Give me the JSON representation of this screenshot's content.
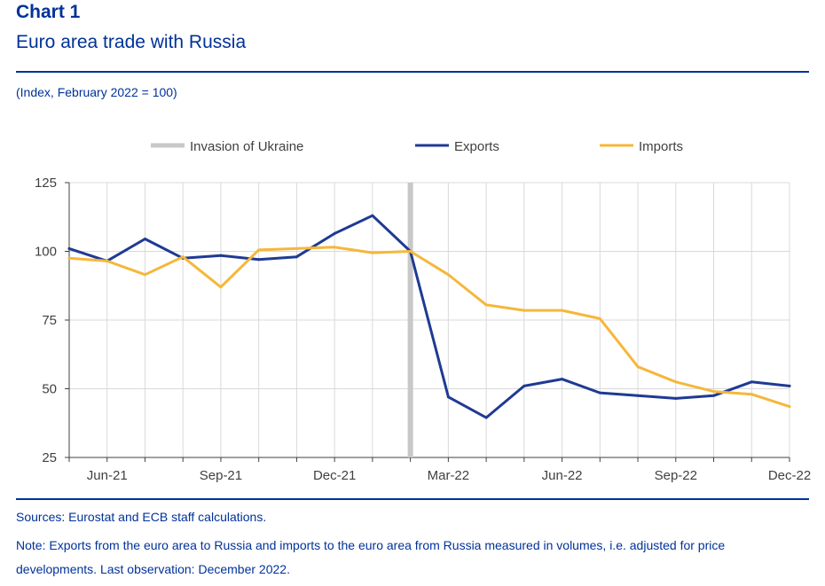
{
  "header": {
    "label": "Chart 1",
    "title": "Euro area trade with Russia"
  },
  "subtitle": "(Index, February 2022 = 100)",
  "footer": {
    "source": "Sources: Eurostat and ECB staff calculations.",
    "note": "Note: Exports from the euro area to Russia and imports to the euro area from Russia measured in volumes, i.e. adjusted for price developments. Last observation: December 2022."
  },
  "colors": {
    "brand": "#003299",
    "exports": "#1f3a93",
    "imports": "#f5b73b",
    "invasion": "#c8c8c8",
    "grid": "#d9d9d9"
  },
  "chart_data": {
    "type": "line",
    "title": "Euro area trade with Russia",
    "ylabel": "Index, February 2022 = 100",
    "xlabel": "",
    "ylim": [
      25,
      125
    ],
    "yticks": [
      25,
      50,
      75,
      100,
      125
    ],
    "grid": true,
    "legend_position": "top",
    "x": [
      "May-21",
      "Jun-21",
      "Jul-21",
      "Aug-21",
      "Sep-21",
      "Oct-21",
      "Nov-21",
      "Dec-21",
      "Jan-22",
      "Feb-22",
      "Mar-22",
      "Apr-22",
      "May-22",
      "Jun-22",
      "Jul-22",
      "Aug-22",
      "Sep-22",
      "Oct-22",
      "Nov-22",
      "Dec-22"
    ],
    "x_tick_labels": [
      {
        "index": 1,
        "label": "Jun-21"
      },
      {
        "index": 4,
        "label": "Sep-21"
      },
      {
        "index": 7,
        "label": "Dec-21"
      },
      {
        "index": 10,
        "label": "Mar-22"
      },
      {
        "index": 13,
        "label": "Jun-22"
      },
      {
        "index": 16,
        "label": "Sep-22"
      },
      {
        "index": 19,
        "label": "Dec-22"
      }
    ],
    "series": [
      {
        "name": "Exports",
        "color": "#1f3a93",
        "values": [
          101,
          96.5,
          104.5,
          97.5,
          98.5,
          97,
          98,
          106.5,
          113,
          100,
          47,
          39.5,
          51,
          53.5,
          48.5,
          47.5,
          46.5,
          47.5,
          52.5,
          51
        ]
      },
      {
        "name": "Imports",
        "color": "#f5b73b",
        "values": [
          97.5,
          96.5,
          91.5,
          98,
          87,
          100.5,
          101,
          101.5,
          99.5,
          100,
          91.5,
          80.5,
          78.5,
          78.5,
          75.5,
          58,
          52.5,
          49,
          48,
          43.5
        ]
      }
    ],
    "annotations": [
      {
        "type": "vline",
        "label": "Invasion of Ukraine",
        "x": "Feb-22"
      }
    ]
  }
}
